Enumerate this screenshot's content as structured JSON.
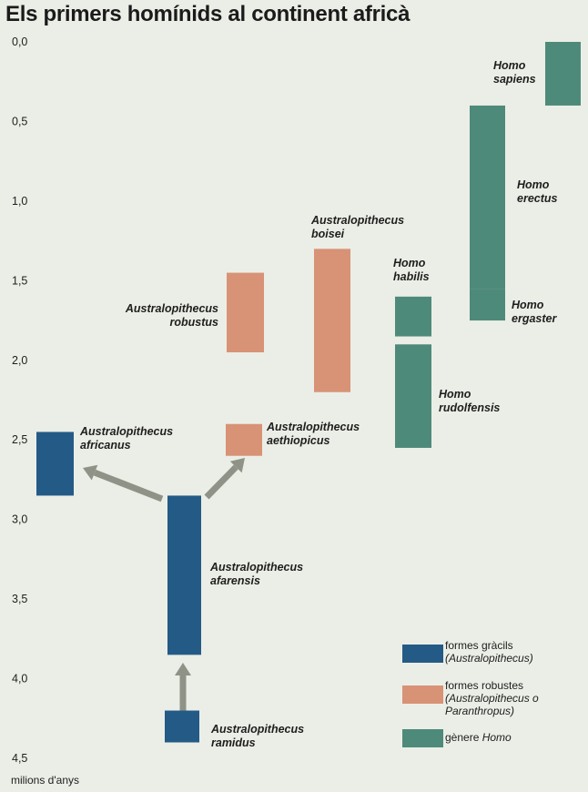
{
  "title": "Els primers homínids al continent africà",
  "chart_data": {
    "type": "range-bar",
    "title": "Els primers homínids al continent africà",
    "ylabel": "milions d'anys",
    "yticks": [
      "0,0",
      "0,5",
      "1,0",
      "1,5",
      "2,0",
      "2,5",
      "3,0",
      "3,5",
      "4,0",
      "4,5"
    ],
    "ylim": [
      0,
      4.5
    ],
    "y_inverted": true,
    "groups": [
      {
        "key": "gracil",
        "legend": [
          "formes gràcils",
          "(Australopithecus)"
        ],
        "color": "#245a86"
      },
      {
        "key": "robust",
        "legend": [
          "formes robustes",
          "(Australopithecus o",
          "Paranthropus)"
        ],
        "color": "#d89276"
      },
      {
        "key": "homo",
        "legend": [
          "gènere Homo"
        ],
        "color": "#4e8a7a"
      }
    ],
    "species": [
      {
        "name": [
          "Australopithecus",
          "ramidus"
        ],
        "group": "gracil",
        "start": 4.4,
        "end": 4.2
      },
      {
        "name": [
          "Australopithecus",
          "afarensis"
        ],
        "group": "gracil",
        "start": 3.85,
        "end": 2.85
      },
      {
        "name": [
          "Australopithecus",
          "africanus"
        ],
        "group": "gracil",
        "start": 2.85,
        "end": 2.45
      },
      {
        "name": [
          "Australopithecus",
          "aethiopicus"
        ],
        "group": "robust",
        "start": 2.6,
        "end": 2.4
      },
      {
        "name": [
          "Australopithecus",
          "robustus"
        ],
        "group": "robust",
        "start": 1.95,
        "end": 1.45
      },
      {
        "name": [
          "Australopithecus",
          "boisei"
        ],
        "group": "robust",
        "start": 2.2,
        "end": 1.3
      },
      {
        "name": [
          "Homo",
          "habilis"
        ],
        "group": "homo",
        "start": 1.85,
        "end": 1.6
      },
      {
        "name": [
          "Homo",
          "rudolfensis"
        ],
        "group": "homo",
        "start": 2.55,
        "end": 1.9
      },
      {
        "name": [
          "Homo",
          "ergaster"
        ],
        "group": "homo",
        "start": 1.75,
        "end": 1.55
      },
      {
        "name": [
          "Homo",
          "erectus"
        ],
        "group": "homo",
        "start": 1.55,
        "end": 0.4
      },
      {
        "name": [
          "Homo",
          "sapiens"
        ],
        "group": "homo",
        "start": 0.4,
        "end": 0
      }
    ],
    "arrows": [
      {
        "from": "Australopithecus ramidus",
        "to": "Australopithecus afarensis"
      },
      {
        "from": "Australopithecus afarensis",
        "to": "Australopithecus africanus"
      },
      {
        "from": "Australopithecus afarensis",
        "to": "Australopithecus aethiopicus"
      }
    ]
  },
  "legend": {
    "gracil": {
      "line1": "formes gràcils",
      "line2": "(Australopithecus)"
    },
    "robust": {
      "line1": "formes robustes",
      "line2": "(Australopithecus o",
      "line3": "Paranthropus)"
    },
    "homo": {
      "pre": "gènere ",
      "it": "Homo"
    }
  },
  "colors": {
    "gracil": "#245a86",
    "robust": "#d89276",
    "homo": "#4e8a7a",
    "arrow": "#8f9387",
    "background": "#ebeee6"
  }
}
